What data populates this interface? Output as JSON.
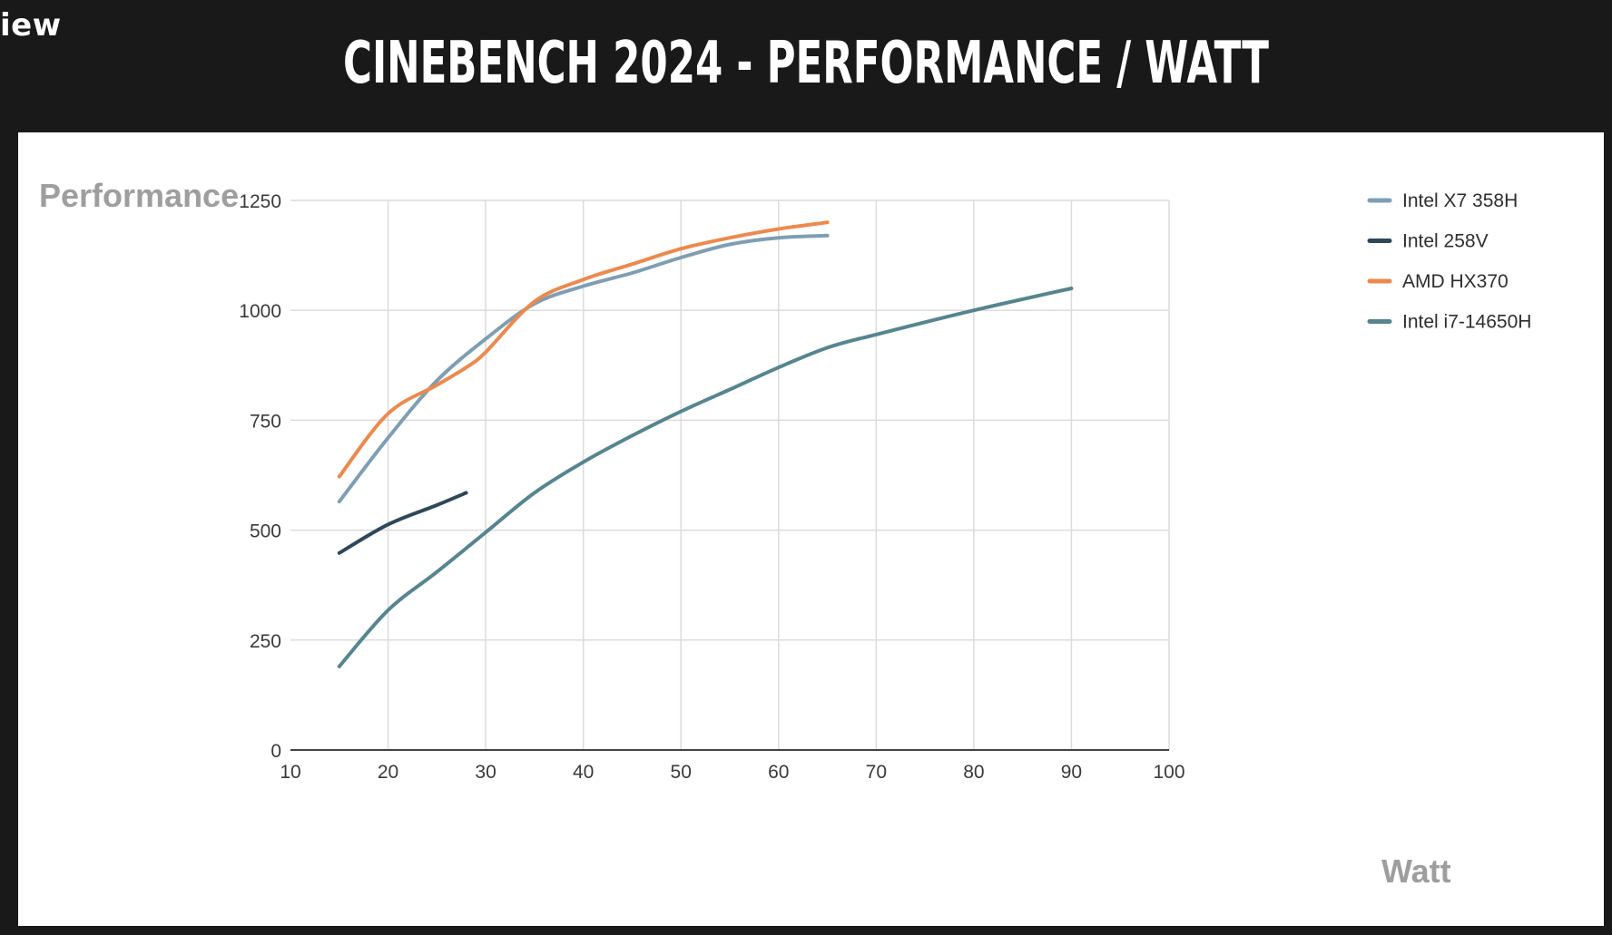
{
  "header": {
    "corner_text": "iew",
    "title": "CINEBENCH 2024 - PERFORMANCE / WATT"
  },
  "chart_data": {
    "type": "line",
    "title": "CINEBENCH 2024 - PERFORMANCE / WATT",
    "xlabel": "Watt",
    "ylabel": "Performance",
    "xlim": [
      10,
      100
    ],
    "ylim": [
      0,
      1250
    ],
    "xticks": [
      10,
      20,
      30,
      40,
      50,
      60,
      70,
      80,
      90,
      100
    ],
    "yticks": [
      0,
      250,
      500,
      750,
      1000,
      1250
    ],
    "grid": true,
    "legend_position": "right",
    "series": [
      {
        "name": "Intel X7 358H",
        "color": "#7f9eb3",
        "x": [
          15,
          20,
          25,
          30,
          35,
          40,
          45,
          50,
          55,
          60,
          65
        ],
        "y": [
          565,
          710,
          840,
          935,
          1015,
          1055,
          1085,
          1120,
          1150,
          1165,
          1170
        ]
      },
      {
        "name": "Intel 258V",
        "color": "#2f4858",
        "x": [
          15,
          20,
          25,
          28
        ],
        "y": [
          448,
          513,
          557,
          585
        ]
      },
      {
        "name": "AMD HX370",
        "color": "#eb8a4e",
        "x": [
          15,
          20,
          25,
          28,
          30,
          35,
          40,
          45,
          50,
          55,
          60,
          65
        ],
        "y": [
          622,
          765,
          830,
          870,
          905,
          1020,
          1070,
          1105,
          1140,
          1165,
          1185,
          1200
        ]
      },
      {
        "name": "Intel i7-14650H",
        "color": "#56858f",
        "x": [
          15,
          20,
          25,
          30,
          35,
          40,
          45,
          50,
          55,
          60,
          65,
          70,
          80,
          90
        ],
        "y": [
          190,
          318,
          405,
          495,
          585,
          655,
          715,
          770,
          820,
          870,
          915,
          945,
          1000,
          1050
        ]
      }
    ]
  }
}
